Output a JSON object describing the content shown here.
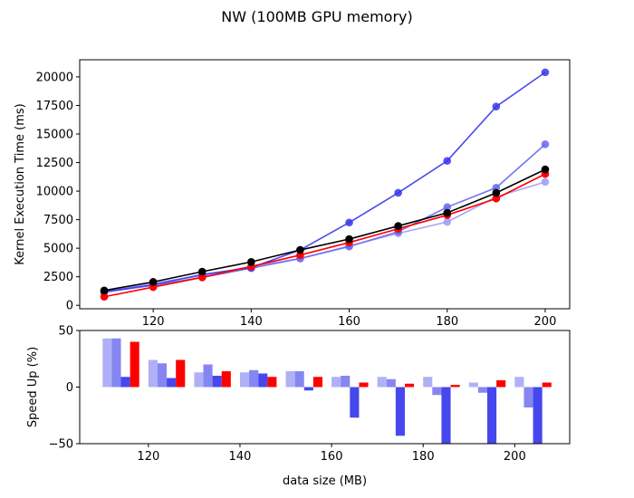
{
  "title": "NW (100MB GPU memory)",
  "chart_data": [
    {
      "type": "line",
      "ylabel": "Kernel Execution Time (ms)",
      "xlim": [
        105,
        205
      ],
      "ylim": [
        -300,
        21500
      ],
      "xticks": [
        120,
        140,
        160,
        180,
        200
      ],
      "yticks": [
        0,
        2500,
        5000,
        7500,
        10000,
        12500,
        15000,
        17500,
        20000
      ],
      "x": [
        110,
        120,
        130,
        140,
        150,
        160,
        170,
        180,
        190,
        200
      ],
      "series": [
        {
          "color": "#9d9df5",
          "values": [
            1250,
            1950,
            2600,
            3400,
            4100,
            5200,
            6300,
            7300,
            9500,
            10800
          ]
        },
        {
          "color": "#6767f0",
          "values": [
            1150,
            1750,
            2450,
            3250,
            4100,
            5150,
            6450,
            8600,
            10300,
            14100
          ]
        },
        {
          "color": "#3535ec",
          "values": [
            1200,
            1800,
            2700,
            3300,
            4850,
            7250,
            9850,
            12650,
            17400,
            20400
          ]
        },
        {
          "color": "#ff0000",
          "values": [
            750,
            1600,
            2450,
            3400,
            4400,
            5500,
            6700,
            7900,
            9350,
            11500
          ]
        },
        {
          "color": "#000000",
          "values": [
            1300,
            2050,
            2950,
            3800,
            4850,
            5800,
            6950,
            8100,
            9850,
            11900
          ]
        }
      ]
    },
    {
      "type": "bar",
      "ylabel": "Speed Up (%)",
      "xlabel": "data size (MB)",
      "xlim": [
        105,
        212
      ],
      "ylim": [
        -50,
        50
      ],
      "xticks": [
        120,
        140,
        160,
        180,
        200
      ],
      "yticks": [
        -50,
        0,
        50
      ],
      "categories": [
        110,
        120,
        130,
        140,
        150,
        160,
        170,
        180,
        190,
        200
      ],
      "series": [
        {
          "color": "#b0b0f7",
          "values": [
            43,
            24,
            13,
            13,
            14,
            9,
            9,
            9,
            4,
            9
          ]
        },
        {
          "color": "#8686f2",
          "values": [
            43,
            21,
            20,
            15,
            14,
            10,
            7,
            -7,
            -5,
            -18
          ]
        },
        {
          "color": "#4747ee",
          "values": [
            9,
            8,
            10,
            12,
            -3,
            -27,
            -43,
            -60,
            -60,
            -60
          ]
        },
        {
          "color": "#ff0000",
          "values": [
            40,
            24,
            14,
            9,
            9,
            4,
            3,
            2,
            6,
            4
          ]
        }
      ]
    }
  ]
}
